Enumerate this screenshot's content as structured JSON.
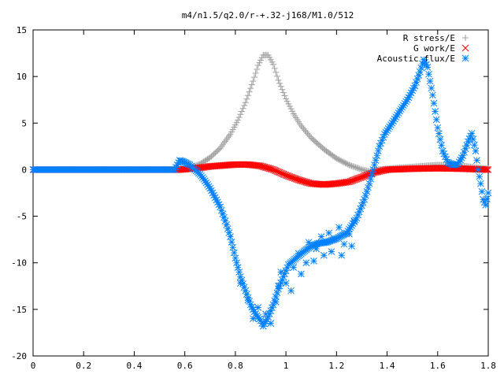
{
  "chart_data": {
    "type": "scatter",
    "title": "m4/n1.5/q2.0/r-+.32-j168/M1.0/512",
    "xlabel": "",
    "ylabel": "",
    "xlim": [
      0,
      1.8
    ],
    "ylim": [
      -20,
      15
    ],
    "x_ticks": [
      "0",
      "0.2",
      "0.4",
      "0.6",
      "0.8",
      "1",
      "1.2",
      "1.4",
      "1.6",
      "1.8"
    ],
    "y_ticks": [
      "15",
      "10",
      "5",
      "0",
      "-5",
      "-10",
      "-15",
      "-20"
    ],
    "legend_position": "top-right",
    "grid": false,
    "series": [
      {
        "name": "R stress/E",
        "marker": "plus",
        "color": "#a0a0a0",
        "points": [
          [
            0.58,
            0.0
          ],
          [
            0.62,
            0.2
          ],
          [
            0.66,
            0.6
          ],
          [
            0.7,
            1.3
          ],
          [
            0.74,
            2.3
          ],
          [
            0.78,
            3.8
          ],
          [
            0.81,
            5.3
          ],
          [
            0.84,
            7.2
          ],
          [
            0.87,
            9.5
          ],
          [
            0.89,
            11.2
          ],
          [
            0.91,
            12.3
          ],
          [
            0.93,
            12.3
          ],
          [
            0.95,
            11.3
          ],
          [
            0.97,
            9.6
          ],
          [
            1.0,
            7.6
          ],
          [
            1.03,
            6.0
          ],
          [
            1.06,
            4.7
          ],
          [
            1.1,
            3.4
          ],
          [
            1.15,
            2.2
          ],
          [
            1.2,
            1.2
          ],
          [
            1.25,
            0.5
          ],
          [
            1.3,
            0.0
          ],
          [
            1.33,
            -0.2
          ],
          [
            1.36,
            0.0
          ],
          [
            1.4,
            0.1
          ],
          [
            1.5,
            0.3
          ],
          [
            1.6,
            0.5
          ],
          [
            1.7,
            0.4
          ],
          [
            1.76,
            0.2
          ],
          [
            1.8,
            0.1
          ]
        ]
      },
      {
        "name": "G work/E",
        "marker": "cross",
        "color": "#ff0000",
        "points": [
          [
            0.0,
            0.0
          ],
          [
            0.58,
            0.0
          ],
          [
            0.62,
            0.1
          ],
          [
            0.66,
            0.2
          ],
          [
            0.7,
            0.35
          ],
          [
            0.75,
            0.45
          ],
          [
            0.8,
            0.55
          ],
          [
            0.85,
            0.55
          ],
          [
            0.9,
            0.4
          ],
          [
            0.95,
            0.0
          ],
          [
            1.0,
            -0.6
          ],
          [
            1.05,
            -1.1
          ],
          [
            1.1,
            -1.5
          ],
          [
            1.15,
            -1.6
          ],
          [
            1.2,
            -1.5
          ],
          [
            1.25,
            -1.3
          ],
          [
            1.3,
            -0.8
          ],
          [
            1.35,
            -0.3
          ],
          [
            1.4,
            0.0
          ],
          [
            1.5,
            0.1
          ],
          [
            1.6,
            0.15
          ],
          [
            1.7,
            0.1
          ],
          [
            1.8,
            0.0
          ]
        ]
      },
      {
        "name": "Acoustic flux/E",
        "marker": "star",
        "color": "#0080ff",
        "points": [
          [
            0.0,
            0.0
          ],
          [
            0.56,
            0.0
          ],
          [
            0.58,
            1.0
          ],
          [
            0.6,
            0.8
          ],
          [
            0.62,
            0.5
          ],
          [
            0.64,
            0.0
          ],
          [
            0.66,
            -0.5
          ],
          [
            0.68,
            -1.2
          ],
          [
            0.7,
            -2.0
          ],
          [
            0.72,
            -3.0
          ],
          [
            0.74,
            -4.0
          ],
          [
            0.76,
            -5.5
          ],
          [
            0.78,
            -7.2
          ],
          [
            0.8,
            -9.5
          ],
          [
            0.82,
            -11.5
          ],
          [
            0.84,
            -13.0
          ],
          [
            0.86,
            -14.5
          ],
          [
            0.88,
            -15.5
          ],
          [
            0.9,
            -16.2
          ],
          [
            0.91,
            -16.8
          ],
          [
            0.93,
            -15.8
          ],
          [
            0.95,
            -14.5
          ],
          [
            0.97,
            -12.8
          ],
          [
            0.99,
            -11.5
          ],
          [
            1.01,
            -10.2
          ],
          [
            1.04,
            -9.5
          ],
          [
            1.07,
            -8.8
          ],
          [
            1.1,
            -8.2
          ],
          [
            1.13,
            -7.9
          ],
          [
            1.16,
            -7.8
          ],
          [
            1.2,
            -7.4
          ],
          [
            1.24,
            -6.8
          ],
          [
            1.28,
            -5.2
          ],
          [
            1.31,
            -3.2
          ],
          [
            1.33,
            -1.5
          ],
          [
            1.35,
            0.5
          ],
          [
            1.37,
            2.5
          ],
          [
            1.39,
            3.8
          ],
          [
            1.42,
            5.0
          ],
          [
            1.45,
            6.3
          ],
          [
            1.48,
            7.5
          ],
          [
            1.51,
            9.0
          ],
          [
            1.53,
            10.5
          ],
          [
            1.545,
            11.8
          ],
          [
            1.56,
            11.0
          ],
          [
            1.58,
            8.0
          ],
          [
            1.6,
            4.5
          ],
          [
            1.62,
            2.0
          ],
          [
            1.64,
            0.8
          ],
          [
            1.66,
            0.5
          ],
          [
            1.68,
            0.6
          ],
          [
            1.7,
            1.5
          ],
          [
            1.72,
            3.0
          ],
          [
            1.735,
            3.9
          ],
          [
            1.75,
            2.0
          ],
          [
            1.76,
            0.0
          ],
          [
            1.77,
            -1.5
          ],
          [
            1.78,
            -3.2
          ],
          [
            1.79,
            -3.8
          ],
          [
            1.8,
            -2.5
          ]
        ],
        "scatter_points": [
          [
            0.82,
            -12.2
          ],
          [
            0.85,
            -14.0
          ],
          [
            0.87,
            -16.0
          ],
          [
            0.89,
            -14.8
          ],
          [
            0.92,
            -15.5
          ],
          [
            0.94,
            -16.5
          ],
          [
            0.96,
            -14.2
          ],
          [
            0.97,
            -12.5
          ],
          [
            0.98,
            -11.0
          ],
          [
            1.0,
            -12.2
          ],
          [
            1.02,
            -13.0
          ],
          [
            1.03,
            -10.5
          ],
          [
            1.05,
            -9.0
          ],
          [
            1.06,
            -11.2
          ],
          [
            1.08,
            -10.0
          ],
          [
            1.09,
            -7.8
          ],
          [
            1.11,
            -9.8
          ],
          [
            1.12,
            -8.5
          ],
          [
            1.14,
            -7.2
          ],
          [
            1.15,
            -9.2
          ],
          [
            1.17,
            -6.8
          ],
          [
            1.18,
            -8.8
          ],
          [
            1.19,
            -7.5
          ],
          [
            1.21,
            -6.2
          ],
          [
            1.22,
            -9.2
          ],
          [
            1.23,
            -8.0
          ],
          [
            1.25,
            -6.9
          ],
          [
            1.27,
            -5.5
          ],
          [
            1.26,
            -8.2
          ]
        ]
      }
    ]
  }
}
